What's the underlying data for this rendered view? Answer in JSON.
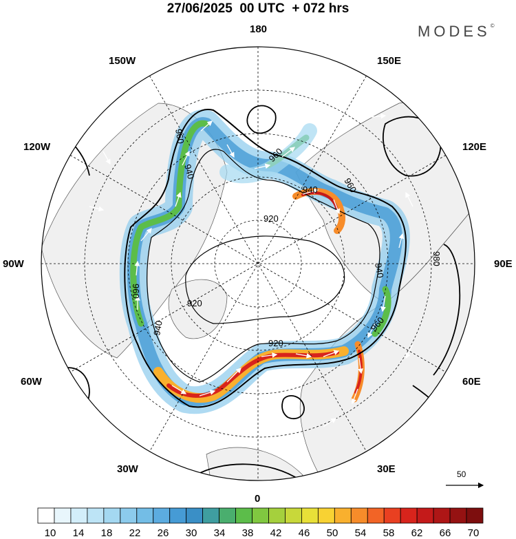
{
  "header": {
    "title": "27/06/2025  00 UTC  + 072 hrs",
    "brand": "MODES",
    "brand_mark": "©"
  },
  "map": {
    "projection": "north-polar-stereographic",
    "longitude_labels": [
      "180",
      "150E",
      "120E",
      "90E",
      "60E",
      "30E",
      "0",
      "30W",
      "60W",
      "90W",
      "120W",
      "150W"
    ],
    "contour_labels": [
      "960",
      "960",
      "940",
      "940",
      "960",
      "920",
      "920",
      "960",
      "920",
      "940",
      "940",
      "960",
      "980"
    ],
    "reference_vector_label": "50",
    "colors": {
      "land": "#f0f0f0",
      "ocean": "#ffffff",
      "graticule": "#000000"
    }
  },
  "colorbar": {
    "colors": [
      "#ffffff",
      "#e8f6fc",
      "#d3eefa",
      "#bde4f6",
      "#a4d8f1",
      "#8ccbec",
      "#73bde6",
      "#5cace0",
      "#469bd5",
      "#3a8fc6",
      "#3f9ea0",
      "#4aae6e",
      "#5cbd4a",
      "#80c840",
      "#a5d03d",
      "#c8d83a",
      "#e8e038",
      "#f8d233",
      "#f9b02e",
      "#f78c2a",
      "#f26426",
      "#e94021",
      "#d8241c",
      "#c41a1a",
      "#ae1616",
      "#951212",
      "#7d0e0e"
    ],
    "tick_labels": [
      "10",
      "14",
      "18",
      "22",
      "26",
      "30",
      "34",
      "38",
      "42",
      "46",
      "50",
      "54",
      "58",
      "62",
      "66",
      "70"
    ]
  }
}
